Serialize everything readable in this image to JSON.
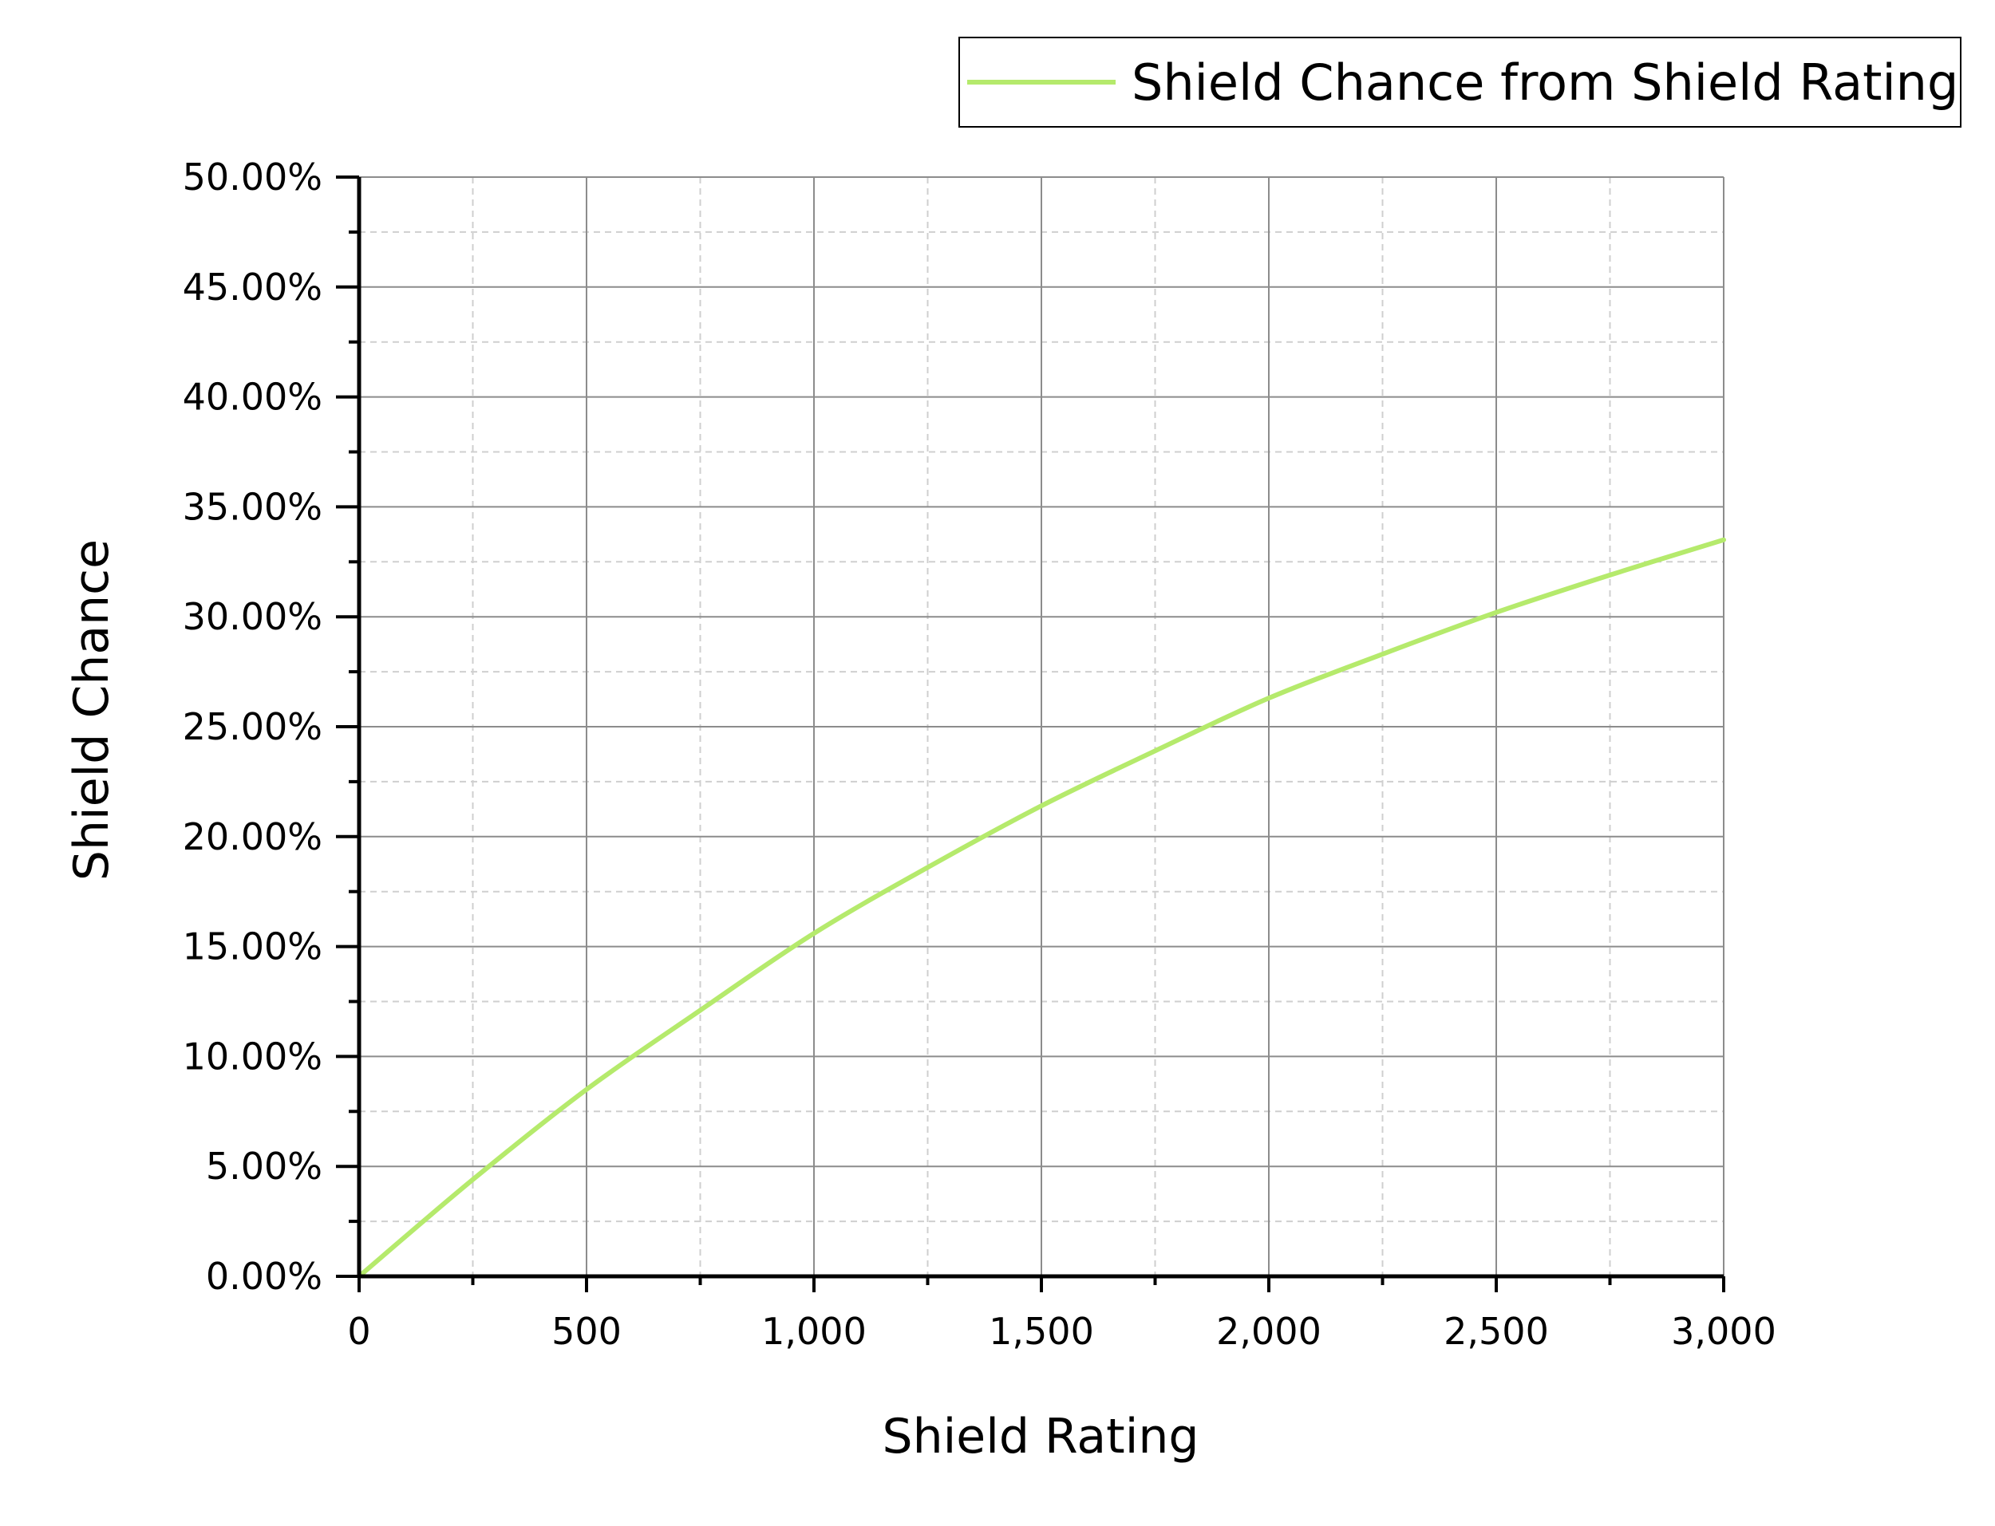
{
  "chart_data": {
    "type": "line",
    "title": "",
    "xlabel": "Shield Rating",
    "ylabel": "Shield Chance",
    "xlim": [
      0,
      3000
    ],
    "ylim": [
      0,
      50
    ],
    "x_ticks": [
      0,
      500,
      1000,
      1500,
      2000,
      2500,
      3000
    ],
    "x_tick_labels": [
      "0",
      "500",
      "1,000",
      "1,500",
      "2,000",
      "2,500",
      "3,000"
    ],
    "y_ticks": [
      0,
      5,
      10,
      15,
      20,
      25,
      30,
      35,
      40,
      45,
      50
    ],
    "y_tick_labels": [
      "0.00%",
      "5.00%",
      "10.00%",
      "15.00%",
      "20.00%",
      "25.00%",
      "30.00%",
      "35.00%",
      "40.00%",
      "45.00%",
      "50.00%"
    ],
    "grid": true,
    "legend_position": "top-right",
    "series": [
      {
        "name": "Shield Chance from Shield Rating",
        "color": "#b5ea6c",
        "x": [
          0,
          250,
          500,
          750,
          1000,
          1250,
          1500,
          1750,
          2000,
          2250,
          2500,
          2750,
          3000
        ],
        "y": [
          0,
          4.4,
          8.5,
          12.1,
          15.6,
          18.6,
          21.4,
          23.9,
          26.3,
          28.3,
          30.2,
          31.9,
          33.5
        ]
      }
    ]
  }
}
